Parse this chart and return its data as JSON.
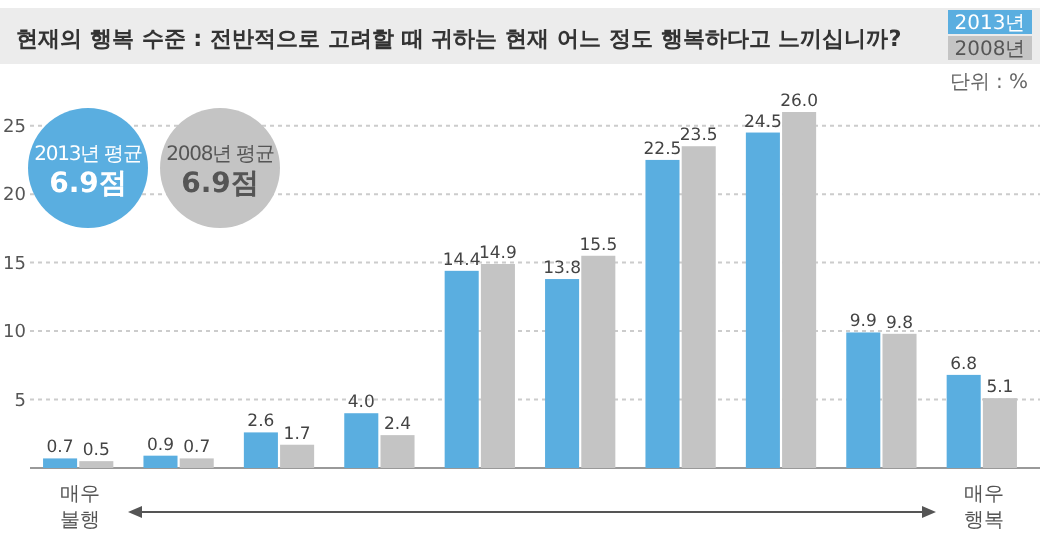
{
  "chart_data": {
    "type": "bar",
    "title": "현재의 행복 수준 : 전반적으로 고려할 때 귀하는 현재 어느 정도 행복하다고 느끼십니까?",
    "categories": [
      null,
      null,
      null,
      null,
      null,
      null,
      null,
      null,
      null,
      null
    ],
    "series": [
      {
        "name": "2013년",
        "color": "#5aaee0",
        "values": [
          0.7,
          0.9,
          2.6,
          4.0,
          14.4,
          13.8,
          22.5,
          24.5,
          9.9,
          6.8
        ],
        "value_labels": [
          "0.7",
          "0.9",
          "2.6",
          "4.0",
          "14.4",
          "13.8",
          "22.5",
          "24.5",
          "9.9",
          "6.8"
        ]
      },
      {
        "name": "2008년",
        "color": "#c4c4c4",
        "values": [
          0.5,
          0.7,
          1.7,
          2.4,
          14.9,
          15.5,
          23.5,
          26.0,
          9.8,
          5.1
        ],
        "value_labels": [
          "0.5",
          "0.7",
          "1.7",
          "2.4",
          "14.9",
          "15.5",
          "23.5",
          "26.0",
          "9.8",
          "5.1"
        ]
      }
    ],
    "ylim": [
      0,
      26
    ],
    "yticks": [
      5,
      10,
      15,
      20,
      25
    ],
    "grid": "y",
    "legend": "top right",
    "annotations": [
      "단위 : %",
      "2013년 평균",
      "6.9점",
      "2008년 평균",
      "6.9점",
      "매우 불행",
      "매우 행복"
    ]
  }
}
